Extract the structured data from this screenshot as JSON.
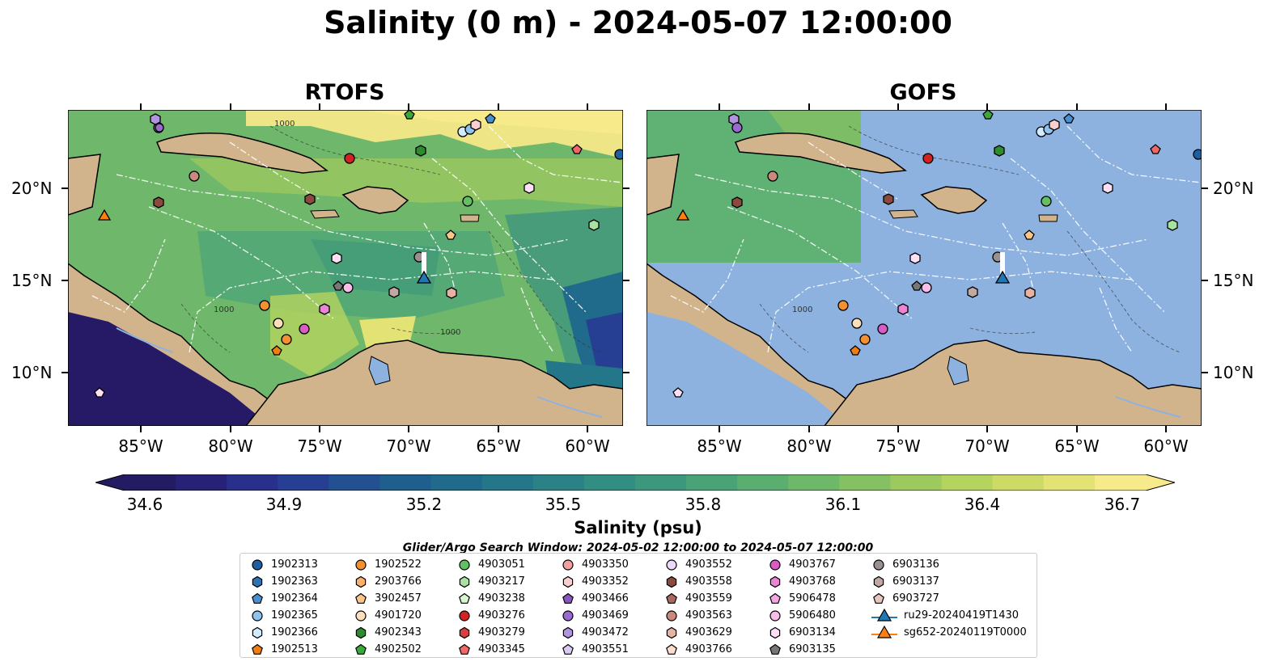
{
  "title": "Salinity (0 m) - 2024-05-07 12:00:00",
  "panels": [
    {
      "title": "RTOFS"
    },
    {
      "title": "GOFS"
    }
  ],
  "axes": {
    "lat_ticks": [
      "20°N",
      "15°N",
      "10°N"
    ],
    "lon_ticks": [
      "85°W",
      "80°W",
      "75°W",
      "70°W",
      "65°W",
      "60°W"
    ]
  },
  "colorbar": {
    "label": "Salinity (psu)",
    "ticks": [
      "34.6",
      "34.9",
      "35.2",
      "35.5",
      "35.8",
      "36.1",
      "36.4",
      "36.7"
    ],
    "colors": [
      "#241c63",
      "#272277",
      "#28308b",
      "#273f93",
      "#235091",
      "#1f5f8e",
      "#206b8c",
      "#237789",
      "#2a8286",
      "#328d82",
      "#3c987d",
      "#4aa377",
      "#5aae70",
      "#6eb869",
      "#85c163",
      "#9dca5f",
      "#b5d35f",
      "#cddb66",
      "#e3e274",
      "#f6ea8b"
    ]
  },
  "search_window": "Glider/Argo Search Window: 2024-05-02 12:00:00 to 2024-05-07 12:00:00",
  "contour_labels": [
    "1000",
    "1000",
    "1000"
  ],
  "legend": {
    "items": [
      {
        "label": "1902313",
        "marker": "circle",
        "color": "#1f5fa0"
      },
      {
        "label": "1902363",
        "marker": "hexagon",
        "color": "#2f72b4"
      },
      {
        "label": "1902364",
        "marker": "pentagon",
        "color": "#4a90d0"
      },
      {
        "label": "1902365",
        "marker": "circle",
        "color": "#8ec3ee"
      },
      {
        "label": "1902366",
        "marker": "hexagon",
        "color": "#d2ecff"
      },
      {
        "label": "1902513",
        "marker": "pentagon",
        "color": "#f07d10"
      },
      {
        "label": "1902522",
        "marker": "circle",
        "color": "#f39030"
      },
      {
        "label": "2903766",
        "marker": "hexagon",
        "color": "#f8b06a"
      },
      {
        "label": "3902457",
        "marker": "pentagon",
        "color": "#fbc68a"
      },
      {
        "label": "4901720",
        "marker": "circle",
        "color": "#fde0bb"
      },
      {
        "label": "4902343",
        "marker": "hexagon",
        "color": "#2e8b2e"
      },
      {
        "label": "4902502",
        "marker": "pentagon",
        "color": "#3aa83a"
      },
      {
        "label": "4903051",
        "marker": "circle",
        "color": "#62c062"
      },
      {
        "label": "4903217",
        "marker": "hexagon",
        "color": "#a8e2a0"
      },
      {
        "label": "4903238",
        "marker": "pentagon",
        "color": "#d8f5d2"
      },
      {
        "label": "4903276",
        "marker": "circle",
        "color": "#d42222"
      },
      {
        "label": "4903279",
        "marker": "hexagon",
        "color": "#d84040"
      },
      {
        "label": "4903345",
        "marker": "pentagon",
        "color": "#ef6868"
      },
      {
        "label": "4903350",
        "marker": "circle",
        "color": "#f2a0a0"
      },
      {
        "label": "4903352",
        "marker": "hexagon",
        "color": "#f9cfcf"
      },
      {
        "label": "4903466",
        "marker": "pentagon",
        "color": "#8a55bf"
      },
      {
        "label": "4903469",
        "marker": "circle",
        "color": "#9b6ad1"
      },
      {
        "label": "4903472",
        "marker": "hexagon",
        "color": "#b293e0"
      },
      {
        "label": "4903551",
        "marker": "pentagon",
        "color": "#dacbf5"
      },
      {
        "label": "4903552",
        "marker": "circle",
        "color": "#ead9fb"
      },
      {
        "label": "4903558",
        "marker": "hexagon",
        "color": "#8c4a3e"
      },
      {
        "label": "4903559",
        "marker": "pentagon",
        "color": "#a86a60"
      },
      {
        "label": "4903563",
        "marker": "circle",
        "color": "#c98a7d"
      },
      {
        "label": "4903629",
        "marker": "hexagon",
        "color": "#e8b2a3"
      },
      {
        "label": "4903766",
        "marker": "pentagon",
        "color": "#fbdccf"
      },
      {
        "label": "4903767",
        "marker": "circle",
        "color": "#d85cc4"
      },
      {
        "label": "4903768",
        "marker": "hexagon",
        "color": "#ea85d6"
      },
      {
        "label": "5906478",
        "marker": "pentagon",
        "color": "#f3a6e4"
      },
      {
        "label": "5906480",
        "marker": "circle",
        "color": "#f8bde9"
      },
      {
        "label": "6903134",
        "marker": "hexagon",
        "color": "#fde0f6"
      },
      {
        "label": "6903135",
        "marker": "pentagon",
        "color": "#777777"
      },
      {
        "label": "6903136",
        "marker": "circle",
        "color": "#9a9090"
      },
      {
        "label": "6903137",
        "marker": "hexagon",
        "color": "#c0a8a3"
      },
      {
        "label": "6903727",
        "marker": "pentagon",
        "color": "#e6c6bf"
      },
      {
        "label": "ru29-20240419T1430",
        "marker": "glider",
        "color": "#1f77b4"
      },
      {
        "label": "sg652-20240119T0000",
        "marker": "glider",
        "color": "#ff7f0e"
      }
    ]
  }
}
